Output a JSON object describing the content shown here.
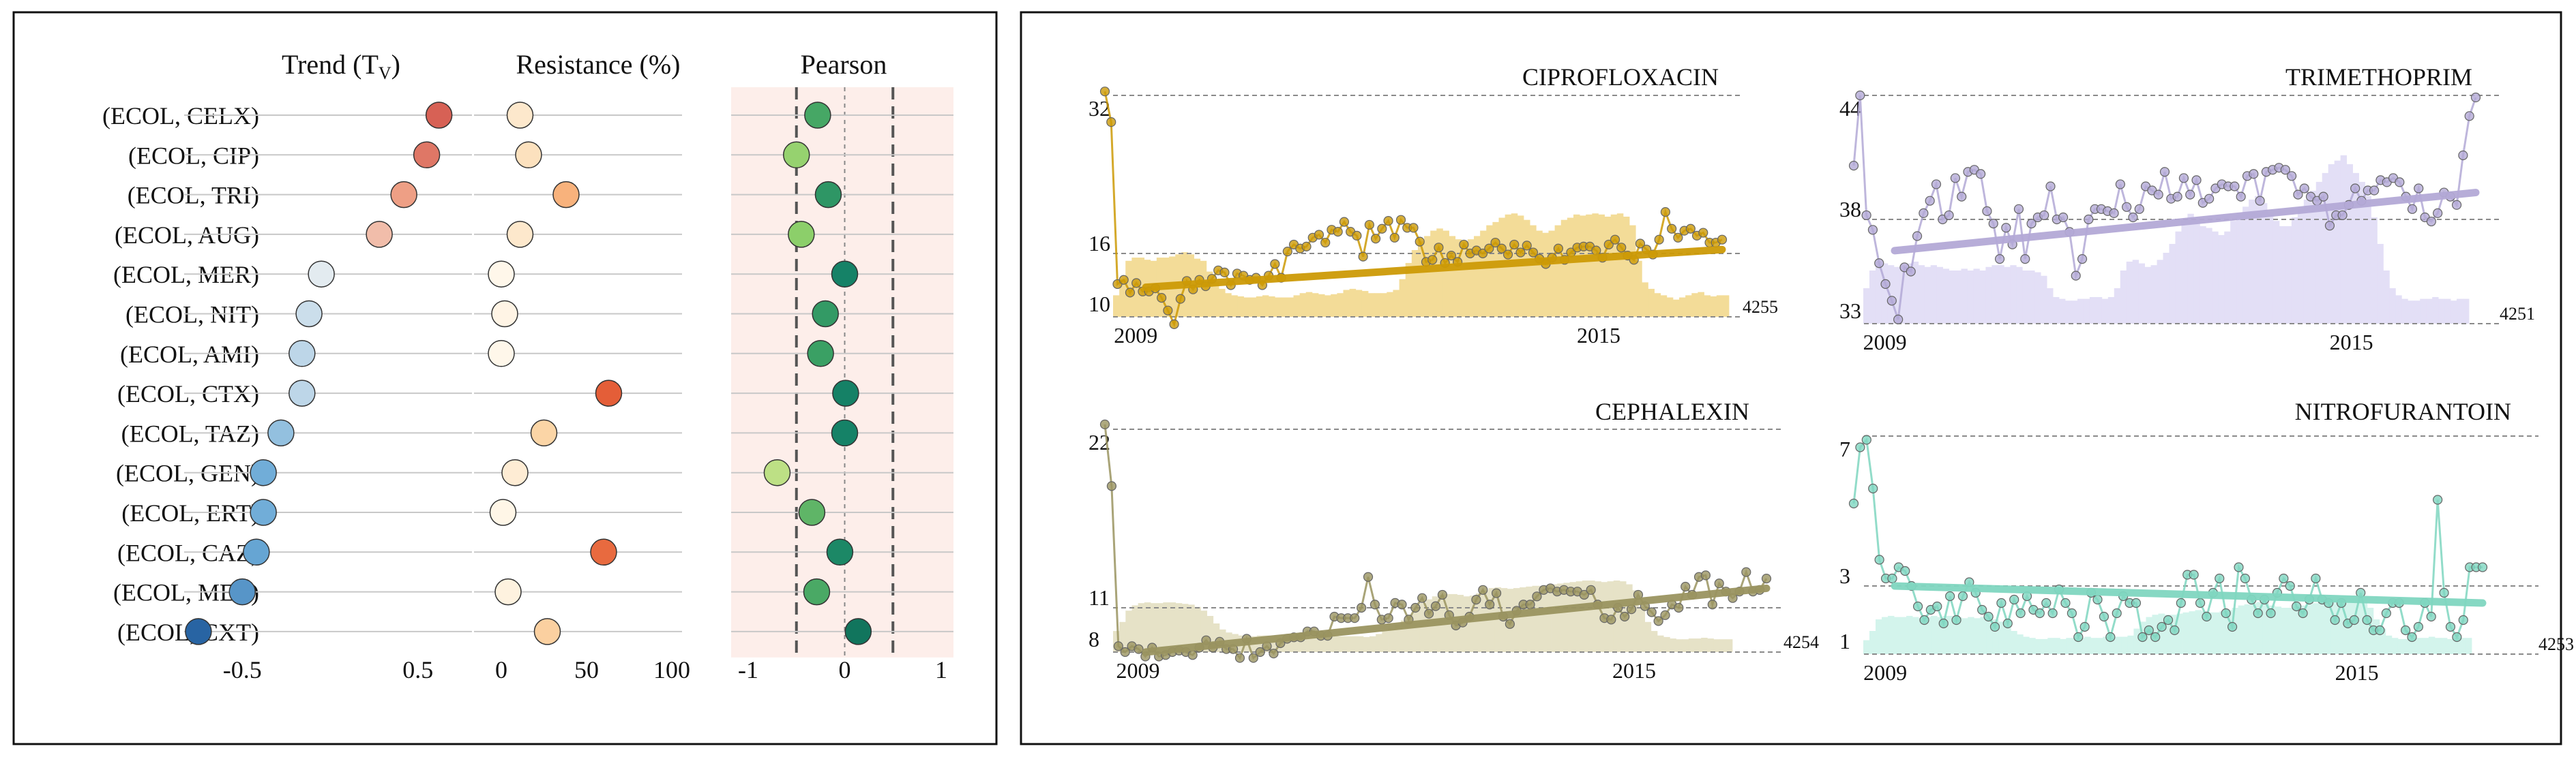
{
  "chart_data": [
    {
      "type": "dot-matrix",
      "panels": {
        "trend": {
          "title": "Trend (T",
          "title_sub": "V",
          "title_close": ")",
          "xlim": [
            -0.8,
            0.8
          ],
          "ticks": [
            "-0.5",
            "0.5"
          ]
        },
        "resistance": {
          "title": "Resistance (%)",
          "xlim": [
            0,
            100
          ],
          "ticks": [
            "0",
            "50",
            "100"
          ]
        },
        "pearson": {
          "title": "Pearson",
          "xlim": [
            -1,
            1
          ],
          "ticks": [
            "-1",
            "0",
            "1"
          ],
          "ref_lines": [
            -0.5,
            0,
            0.5
          ]
        }
      },
      "rows": [
        {
          "label": "(ECOL, CELX)",
          "trend": 0.62,
          "resistance": 11,
          "pearson": -0.28
        },
        {
          "label": "(ECOL, CIP)",
          "trend": 0.55,
          "resistance": 16,
          "pearson": -0.5
        },
        {
          "label": "(ECOL, TRI)",
          "trend": 0.42,
          "resistance": 38,
          "pearson": -0.17
        },
        {
          "label": "(ECOL, AUG)",
          "trend": 0.28,
          "resistance": 11,
          "pearson": -0.45
        },
        {
          "label": "(ECOL, MER)",
          "trend": -0.05,
          "resistance": 0,
          "pearson": 0.0
        },
        {
          "label": "(ECOL, NIT)",
          "trend": -0.12,
          "resistance": 2,
          "pearson": -0.2
        },
        {
          "label": "(ECOL, AMI)",
          "trend": -0.16,
          "resistance": 0,
          "pearson": -0.25
        },
        {
          "label": "(ECOL, CTX)",
          "trend": -0.16,
          "resistance": 63,
          "pearson": 0.01
        },
        {
          "label": "(ECOL, TAZ)",
          "trend": -0.28,
          "resistance": 25,
          "pearson": 0.0
        },
        {
          "label": "(ECOL, GEN)",
          "trend": -0.38,
          "resistance": 8,
          "pearson": -0.7
        },
        {
          "label": "(ECOL, ERT)",
          "trend": -0.38,
          "resistance": 1,
          "pearson": -0.34
        },
        {
          "label": "(ECOL, CAZ)",
          "trend": -0.42,
          "resistance": 60,
          "pearson": -0.05
        },
        {
          "label": "(ECOL, MEC)",
          "trend": -0.5,
          "resistance": 4,
          "pearson": -0.29
        },
        {
          "label": "(ECOL, CXT)",
          "trend": -0.75,
          "resistance": 27,
          "pearson": 0.14
        }
      ]
    },
    {
      "type": "line+bar",
      "title": "CIPROFLOXACIN",
      "color": "#cc9a06",
      "bar_color": "#f3dc98",
      "y_ticks": [
        "32",
        "16",
        "10"
      ],
      "ylim": [
        9,
        32
      ],
      "x_ticks": [
        "2009",
        "2015"
      ],
      "xlim": [
        2008.6,
        2016.6
      ],
      "count_label": "4255",
      "trend_line": [
        12.8,
        16.4
      ],
      "series": [
        32.4,
        29.3,
        13.1,
        13.5,
        12.3,
        13.2,
        12.4,
        12.4,
        12.7,
        11.8,
        10.6,
        9.3,
        11.7,
        13.4,
        12.6,
        13.5,
        12.9,
        13.6,
        14.4,
        14.2,
        13.0,
        14.1,
        13.9,
        13.5,
        13.7,
        13.0,
        13.9,
        15.0,
        13.7,
        16.2,
        16.9,
        16.5,
        16.7,
        17.6,
        17.9,
        17.1,
        18.4,
        18.2,
        19.2,
        18.2,
        17.8,
        15.7,
        18.9,
        17.5,
        18.5,
        19.3,
        17.6,
        19.4,
        18.6,
        18.6,
        17.2,
        15.2,
        15.4,
        16.6,
        15.1,
        15.8,
        15.2,
        16.9,
        16.0,
        16.3,
        16.0,
        16.5,
        17.1,
        16.5,
        15.9,
        16.9,
        16.1,
        16.8,
        16.1,
        15.5,
        15.0,
        15.6,
        16.5,
        15.4,
        16.1,
        16.6,
        16.7,
        16.7,
        16.3,
        15.6,
        16.9,
        17.4,
        16.6,
        15.8,
        15.4,
        17.0,
        16.4,
        15.9,
        17.4,
        20.2,
        18.5,
        17.6,
        18.3,
        18.5,
        17.8,
        18.1,
        17.1,
        17.1,
        17.4
      ],
      "bars": [
        0.2,
        0.35,
        0.52,
        0.55,
        0.55,
        0.53,
        0.52,
        0.55,
        0.55,
        0.56,
        0.58,
        0.6,
        0.58,
        0.54,
        0.52,
        0.42,
        0.32,
        0.26,
        0.22,
        0.2,
        0.19,
        0.18,
        0.18,
        0.19,
        0.2,
        0.19,
        0.18,
        0.18,
        0.18,
        0.2,
        0.22,
        0.23,
        0.22,
        0.21,
        0.2,
        0.21,
        0.22,
        0.25,
        0.26,
        0.25,
        0.24,
        0.22,
        0.22,
        0.22,
        0.23,
        0.25,
        0.35,
        0.5,
        0.62,
        0.7,
        0.75,
        0.8,
        0.82,
        0.8,
        0.75,
        0.72,
        0.7,
        0.72,
        0.75,
        0.8,
        0.85,
        0.88,
        0.92,
        0.95,
        0.96,
        0.94,
        0.9,
        0.85,
        0.8,
        0.78,
        0.8,
        0.85,
        0.9,
        0.92,
        0.95,
        0.94,
        0.95,
        0.96,
        0.95,
        0.93,
        0.95,
        0.96,
        0.93,
        0.85,
        0.52,
        0.32,
        0.26,
        0.22,
        0.2,
        0.18,
        0.16,
        0.18,
        0.2,
        0.22,
        0.23,
        0.2,
        0.19,
        0.2,
        0.2
      ]
    },
    {
      "type": "line+bar",
      "title": "TRIMETHOPRIM",
      "color": "#b3a9d6",
      "bar_color": "#e3dff6",
      "y_ticks": [
        "44",
        "38",
        "33"
      ],
      "ylim": [
        33,
        44
      ],
      "x_ticks": [
        "2009",
        "2015"
      ],
      "xlim": [
        2008.6,
        2016.6
      ],
      "count_label": "4251",
      "trend_line": [
        36.5,
        39.3
      ],
      "series": [
        40.6,
        44.0,
        38.2,
        37.5,
        35.9,
        34.9,
        34.1,
        33.2,
        35.7,
        35.5,
        37.2,
        38.3,
        38.9,
        39.7,
        38.0,
        38.2,
        40.0,
        39.1,
        40.3,
        40.4,
        40.2,
        38.4,
        37.8,
        36.1,
        37.6,
        36.8,
        38.5,
        36.1,
        37.8,
        38.1,
        38.2,
        39.6,
        38.0,
        38.1,
        37.4,
        35.3,
        36.1,
        38.0,
        38.5,
        38.5,
        38.4,
        38.3,
        39.7,
        38.6,
        38.1,
        38.5,
        39.6,
        39.4,
        39.2,
        40.3,
        39.0,
        39.1,
        40.0,
        39.2,
        39.9,
        38.8,
        39.0,
        39.5,
        39.7,
        39.6,
        39.6,
        39.1,
        40.1,
        40.2,
        38.9,
        40.3,
        40.4,
        40.5,
        40.4,
        40.1,
        39.2,
        39.5,
        39.1,
        38.9,
        39.1,
        37.7,
        38.2,
        38.2,
        38.7,
        39.5,
        38.9,
        39.4,
        39.4,
        39.9,
        39.8,
        40.0,
        39.8,
        39.1,
        38.5,
        39.5,
        38.1,
        37.9,
        38.3,
        39.3,
        39.1,
        38.7,
        41.1,
        43.0,
        43.9
      ],
      "bars": [
        0.2,
        0.3,
        0.35,
        0.34,
        0.33,
        0.32,
        0.33,
        0.34,
        0.35,
        0.33,
        0.32,
        0.33,
        0.32,
        0.31,
        0.3,
        0.3,
        0.31,
        0.3,
        0.31,
        0.3,
        0.32,
        0.33,
        0.33,
        0.32,
        0.33,
        0.32,
        0.3,
        0.3,
        0.29,
        0.27,
        0.2,
        0.15,
        0.14,
        0.13,
        0.13,
        0.14,
        0.14,
        0.15,
        0.15,
        0.14,
        0.15,
        0.2,
        0.3,
        0.35,
        0.36,
        0.34,
        0.32,
        0.33,
        0.36,
        0.4,
        0.45,
        0.52,
        0.58,
        0.62,
        0.6,
        0.55,
        0.54,
        0.52,
        0.5,
        0.52,
        0.58,
        0.62,
        0.66,
        0.7,
        0.72,
        0.68,
        0.62,
        0.58,
        0.55,
        0.55,
        0.6,
        0.65,
        0.7,
        0.75,
        0.8,
        0.85,
        0.9,
        0.92,
        0.95,
        0.9,
        0.85,
        0.8,
        0.72,
        0.6,
        0.45,
        0.3,
        0.2,
        0.16,
        0.14,
        0.13,
        0.13,
        0.14,
        0.14,
        0.15,
        0.14,
        0.14,
        0.13,
        0.14,
        0.14
      ]
    },
    {
      "type": "line+bar",
      "title": "CEPHALEXIN",
      "color": "#9a9460",
      "bar_color": "#e6e2c7",
      "y_ticks": [
        "22",
        "11",
        "8"
      ],
      "ylim": [
        8,
        22
      ],
      "x_ticks": [
        "2009",
        "2015"
      ],
      "xlim": [
        2008.6,
        2016.6
      ],
      "count_label": "4254",
      "trend_line": [
        8.0,
        12.2
      ],
      "series": [
        22.3,
        18.5,
        8.4,
        8.0,
        8.4,
        8.2,
        7.7,
        8.3,
        7.7,
        7.8,
        8.0,
        8.1,
        8.0,
        7.8,
        8.3,
        8.8,
        8.3,
        8.7,
        8.2,
        8.2,
        7.6,
        8.9,
        7.6,
        8.0,
        8.4,
        7.9,
        8.6,
        8.9,
        9.0,
        9.0,
        9.4,
        9.4,
        9.1,
        9.1,
        10.4,
        10.3,
        10.3,
        10.3,
        11.0,
        12.9,
        11.2,
        10.2,
        10.3,
        11.3,
        11.2,
        10.2,
        11.0,
        11.6,
        10.6,
        11.1,
        11.8,
        10.5,
        9.8,
        10.0,
        10.4,
        11.5,
        12.1,
        11.2,
        11.9,
        10.4,
        9.9,
        10.8,
        11.2,
        11.2,
        11.7,
        12.1,
        12.2,
        12.0,
        12.1,
        12.0,
        12.0,
        11.8,
        12.1,
        11.2,
        10.3,
        10.2,
        11.0,
        10.4,
        10.9,
        11.8,
        11.1,
        10.7,
        10.1,
        10.5,
        11.2,
        11.0,
        12.3,
        11.8,
        12.9,
        13.0,
        11.2,
        12.5,
        12.0,
        11.6,
        12.0,
        13.2,
        12.0,
        12.1,
        12.8
      ],
      "bars": [
        0.28,
        0.4,
        0.55,
        0.62,
        0.65,
        0.66,
        0.65,
        0.65,
        0.66,
        0.66,
        0.65,
        0.64,
        0.63,
        0.6,
        0.55,
        0.48,
        0.38,
        0.3,
        0.26,
        0.24,
        0.22,
        0.22,
        0.21,
        0.22,
        0.22,
        0.21,
        0.22,
        0.22,
        0.22,
        0.23,
        0.23,
        0.22,
        0.22,
        0.23,
        0.22,
        0.22,
        0.21,
        0.21,
        0.21,
        0.21,
        0.2,
        0.21,
        0.24,
        0.28,
        0.32,
        0.36,
        0.42,
        0.5,
        0.58,
        0.65,
        0.7,
        0.74,
        0.76,
        0.77,
        0.77,
        0.76,
        0.74,
        0.75,
        0.78,
        0.82,
        0.85,
        0.86,
        0.85,
        0.84,
        0.85,
        0.86,
        0.87,
        0.88,
        0.88,
        0.89,
        0.9,
        0.91,
        0.92,
        0.93,
        0.94,
        0.95,
        0.95,
        0.94,
        0.93,
        0.94,
        0.95,
        0.94,
        0.9,
        0.82,
        0.6,
        0.4,
        0.28,
        0.22,
        0.2,
        0.18,
        0.17,
        0.17,
        0.18,
        0.18,
        0.19,
        0.18,
        0.17,
        0.17,
        0.17
      ]
    },
    {
      "type": "line+bar",
      "title": "NITROFURANTOIN",
      "color": "#7fd6c0",
      "bar_color": "#d3f4ec",
      "y_ticks": [
        "7",
        "3",
        "1"
      ],
      "ylim": [
        1,
        7
      ],
      "x_ticks": [
        "2009",
        "2015"
      ],
      "xlim": [
        2008.6,
        2016.6
      ],
      "count_label": "4253",
      "trend_line": [
        3.0,
        2.5
      ],
      "series": [
        5.2,
        6.7,
        6.9,
        5.6,
        3.7,
        3.2,
        3.2,
        3.5,
        3.4,
        3.0,
        2.4,
        2.0,
        2.3,
        2.4,
        1.9,
        2.7,
        2.0,
        2.7,
        3.1,
        2.8,
        2.3,
        2.1,
        1.8,
        2.5,
        1.9,
        2.6,
        2.2,
        2.7,
        2.3,
        2.2,
        2.5,
        2.2,
        2.9,
        2.5,
        2.2,
        1.5,
        1.8,
        2.8,
        2.6,
        2.1,
        1.5,
        2.2,
        2.7,
        2.5,
        2.5,
        1.5,
        1.7,
        1.5,
        1.8,
        2.0,
        1.7,
        2.5,
        3.3,
        3.3,
        2.5,
        2.1,
        2.8,
        3.2,
        2.2,
        1.8,
        3.5,
        3.2,
        2.6,
        2.2,
        2.6,
        2.2,
        2.8,
        3.2,
        3.0,
        2.4,
        2.2,
        2.6,
        3.2,
        2.6,
        2.5,
        2.0,
        2.5,
        1.9,
        2.0,
        2.8,
        2.0,
        1.7,
        1.7,
        2.2,
        2.5,
        2.5,
        1.7,
        1.5,
        1.8,
        2.5,
        2.1,
        5.3,
        2.8,
        1.8,
        1.5,
        2.0,
        3.5,
        3.5,
        3.5
      ],
      "bars": [
        0.12,
        0.2,
        0.3,
        0.32,
        0.33,
        0.32,
        0.32,
        0.33,
        0.32,
        0.31,
        0.32,
        0.33,
        0.32,
        0.33,
        0.33,
        0.32,
        0.31,
        0.32,
        0.31,
        0.32,
        0.31,
        0.3,
        0.28,
        0.24,
        0.2,
        0.17,
        0.15,
        0.14,
        0.13,
        0.13,
        0.14,
        0.14,
        0.13,
        0.14,
        0.14,
        0.14,
        0.15,
        0.14,
        0.14,
        0.15,
        0.14,
        0.15,
        0.15,
        0.16,
        0.22,
        0.28,
        0.32,
        0.34,
        0.35,
        0.34,
        0.34,
        0.35,
        0.36,
        0.37,
        0.38,
        0.37,
        0.36,
        0.36,
        0.37,
        0.38,
        0.4,
        0.42,
        0.43,
        0.44,
        0.45,
        0.44,
        0.42,
        0.41,
        0.4,
        0.4,
        0.41,
        0.42,
        0.43,
        0.44,
        0.45,
        0.46,
        0.47,
        0.46,
        0.45,
        0.46,
        0.47,
        0.45,
        0.4,
        0.3,
        0.22,
        0.16,
        0.14,
        0.13,
        0.13,
        0.14,
        0.14,
        0.14,
        0.15,
        0.14,
        0.14,
        0.13,
        0.14,
        0.14,
        0.14
      ]
    }
  ]
}
